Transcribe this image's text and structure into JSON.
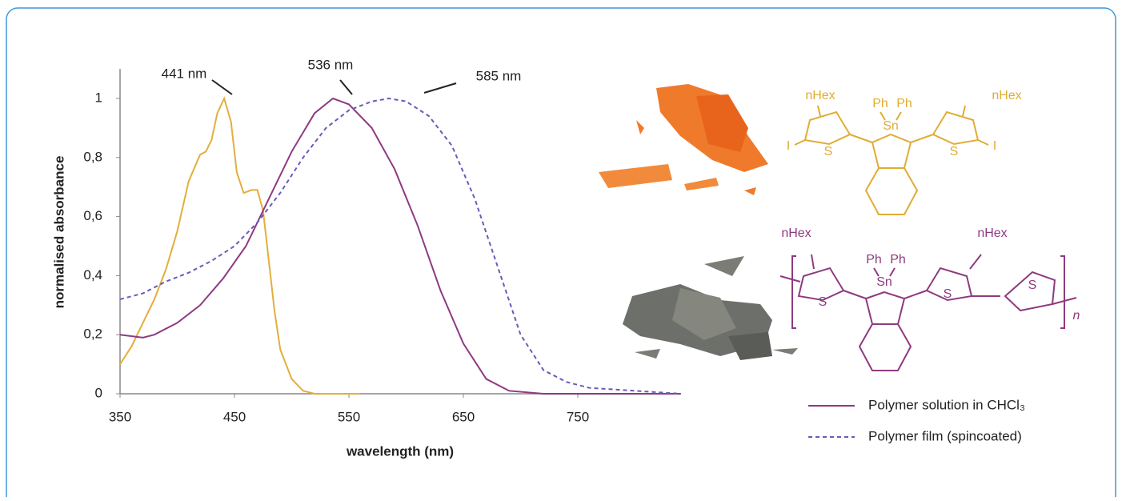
{
  "chart_data": {
    "type": "line",
    "xlabel": "wavelength (nm)",
    "ylabel": "normalised absorbance",
    "xlim": [
      350,
      840
    ],
    "xticks": [
      350,
      450,
      550,
      650,
      750
    ],
    "ylim": [
      0,
      1.1
    ],
    "yticks": [
      0,
      {
        "value": 0.2,
        "label": "0,2"
      },
      {
        "value": 0.4,
        "label": "0,4"
      },
      {
        "value": 0.6,
        "label": "0,6"
      },
      {
        "value": 0.8,
        "label": "0,8"
      },
      1
    ],
    "legend": "bottom-right",
    "series": [
      {
        "color": "#e3ae3c",
        "style": "solid",
        "x": [
          350,
          360,
          370,
          380,
          390,
          400,
          410,
          420,
          425,
          430,
          435,
          441,
          447,
          452,
          458,
          465,
          470,
          475,
          480,
          485,
          490,
          500,
          510,
          520,
          560
        ],
        "values": [
          0.1,
          0.16,
          0.24,
          0.32,
          0.42,
          0.55,
          0.72,
          0.81,
          0.82,
          0.86,
          0.95,
          1.0,
          0.92,
          0.75,
          0.68,
          0.69,
          0.69,
          0.62,
          0.45,
          0.28,
          0.15,
          0.05,
          0.01,
          0,
          0
        ]
      },
      {
        "name": "Polymer solution in CHCl₃",
        "color": "#8e3a80",
        "style": "solid",
        "x": [
          350,
          370,
          380,
          400,
          420,
          440,
          460,
          480,
          500,
          520,
          536,
          550,
          570,
          590,
          610,
          630,
          650,
          670,
          690,
          720,
          840
        ],
        "values": [
          0.2,
          0.19,
          0.2,
          0.24,
          0.3,
          0.39,
          0.5,
          0.66,
          0.82,
          0.95,
          1.0,
          0.98,
          0.9,
          0.76,
          0.57,
          0.35,
          0.17,
          0.05,
          0.01,
          0,
          0
        ]
      },
      {
        "name": "Polymer film (spincoated)",
        "color": "#6a5ab8",
        "style": "dashed",
        "x": [
          350,
          370,
          390,
          410,
          430,
          450,
          470,
          490,
          510,
          530,
          550,
          570,
          585,
          600,
          620,
          640,
          660,
          680,
          700,
          720,
          740,
          760,
          800,
          840
        ],
        "values": [
          0.32,
          0.34,
          0.38,
          0.41,
          0.45,
          0.5,
          0.58,
          0.68,
          0.8,
          0.9,
          0.96,
          0.99,
          1.0,
          0.99,
          0.94,
          0.84,
          0.66,
          0.43,
          0.2,
          0.08,
          0.04,
          0.02,
          0.01,
          0
        ]
      }
    ],
    "annotations": [
      "441 nm",
      "536 nm",
      "585 nm"
    ]
  },
  "monomer_labels": [
    "nHex",
    "nHex",
    "Ph",
    "Ph",
    "Sn",
    "S",
    "S",
    "I",
    "I"
  ],
  "polymer_labels": [
    "nHex",
    "nHex",
    "Ph",
    "Ph",
    "Sn",
    "S",
    "S",
    "S",
    "n"
  ]
}
